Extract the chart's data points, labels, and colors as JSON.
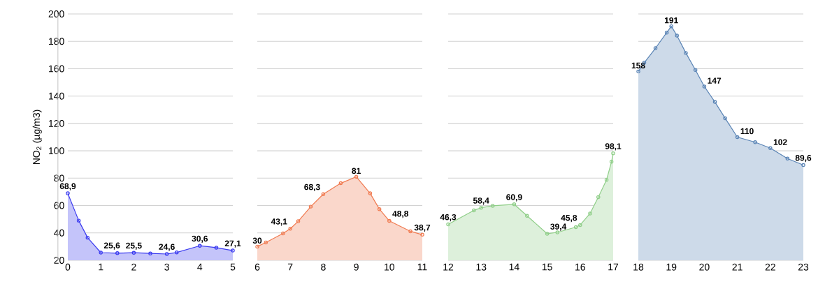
{
  "chart_data": [
    {
      "type": "area",
      "ylabel": "NO$_{2}$ (µg/m3)",
      "color": "#3a3af0",
      "grid": "y",
      "marker": "circle",
      "x": [
        0,
        0.33,
        0.6,
        1,
        1.5,
        2,
        2.5,
        3,
        3.3,
        4,
        4.5,
        5
      ],
      "values": [
        68.9,
        49,
        36.5,
        25.6,
        25.2,
        25.5,
        25,
        24.6,
        25.7,
        30.6,
        29.2,
        27.1
      ],
      "value_labels": [
        "68,9",
        null,
        null,
        "25,6",
        null,
        "25,5",
        null,
        "24,6",
        null,
        "30,6",
        null,
        "27,1"
      ],
      "xlim": [
        0,
        5
      ],
      "xticks": [
        0,
        1,
        2,
        3,
        4,
        5
      ],
      "ylim": [
        20,
        200
      ],
      "yticks": [
        20,
        40,
        60,
        80,
        100,
        120,
        140,
        160,
        180,
        200
      ]
    },
    {
      "type": "area",
      "color": "#f07a50",
      "grid": "y",
      "marker": "circle",
      "tick_labels": "x",
      "x": [
        6,
        6.26,
        6.78,
        7,
        7.24,
        7.62,
        8,
        8.53,
        9,
        9.42,
        9.7,
        10,
        10.64,
        11
      ],
      "values": [
        30,
        33,
        39.6,
        43.1,
        48.5,
        59.2,
        68.3,
        76.3,
        81,
        68.9,
        57.4,
        48.8,
        41.2,
        38.7
      ],
      "value_labels": [
        "30",
        null,
        null,
        "43,1",
        null,
        null,
        "68,3",
        null,
        "81",
        null,
        null,
        "48,8",
        null,
        "38,7"
      ],
      "xlim": [
        6,
        11
      ],
      "xticks": [
        6,
        7,
        8,
        9,
        10,
        11
      ],
      "ylim": [
        20,
        200
      ],
      "yticks": [
        20,
        40,
        60,
        80,
        100,
        120,
        140,
        160,
        180,
        200
      ]
    },
    {
      "type": "area",
      "color": "#8fce88",
      "grid": "y",
      "marker": "circle",
      "tick_labels": "x",
      "x": [
        12,
        12.78,
        13,
        13.35,
        14,
        14.39,
        15,
        15.31,
        15.87,
        16,
        16.3,
        16.55,
        16.8,
        16.95,
        17
      ],
      "values": [
        46.3,
        56.5,
        58.4,
        59.8,
        60.9,
        52.5,
        39.4,
        40.4,
        44.2,
        45.8,
        54.2,
        66.2,
        78.8,
        92,
        98.1
      ],
      "value_labels": [
        "46,3",
        null,
        "58,4",
        null,
        "60,9",
        null,
        "39,4",
        null,
        null,
        "45,8",
        null,
        null,
        null,
        null,
        "98,1"
      ],
      "xlim": [
        12,
        17
      ],
      "xticks": [
        12,
        13,
        14,
        15,
        16,
        17
      ],
      "ylim": [
        20,
        200
      ],
      "yticks": [
        20,
        40,
        60,
        80,
        100,
        120,
        140,
        160,
        180,
        200
      ]
    },
    {
      "type": "area",
      "color": "#5a84b5",
      "grid": "y",
      "marker": "circle",
      "tick_labels": "x",
      "x": [
        18,
        18.18,
        18.52,
        18.86,
        19,
        19.17,
        19.44,
        19.73,
        20,
        20.32,
        20.63,
        21,
        21.54,
        22,
        22.52,
        23
      ],
      "values": [
        158,
        164.4,
        175,
        186.4,
        191,
        184.2,
        171.5,
        159.1,
        147,
        135.7,
        123.8,
        110,
        106.3,
        102,
        94.3,
        89.6
      ],
      "value_labels": [
        "158",
        null,
        null,
        null,
        "191",
        null,
        null,
        null,
        "147",
        null,
        null,
        "110",
        null,
        "102",
        null,
        "89,6"
      ],
      "xlim": [
        18,
        23
      ],
      "xticks": [
        18,
        19,
        20,
        21,
        22,
        23
      ],
      "ylim": [
        20,
        200
      ],
      "yticks": [
        20,
        40,
        60,
        80,
        100,
        120,
        140,
        160,
        180,
        200
      ]
    }
  ]
}
